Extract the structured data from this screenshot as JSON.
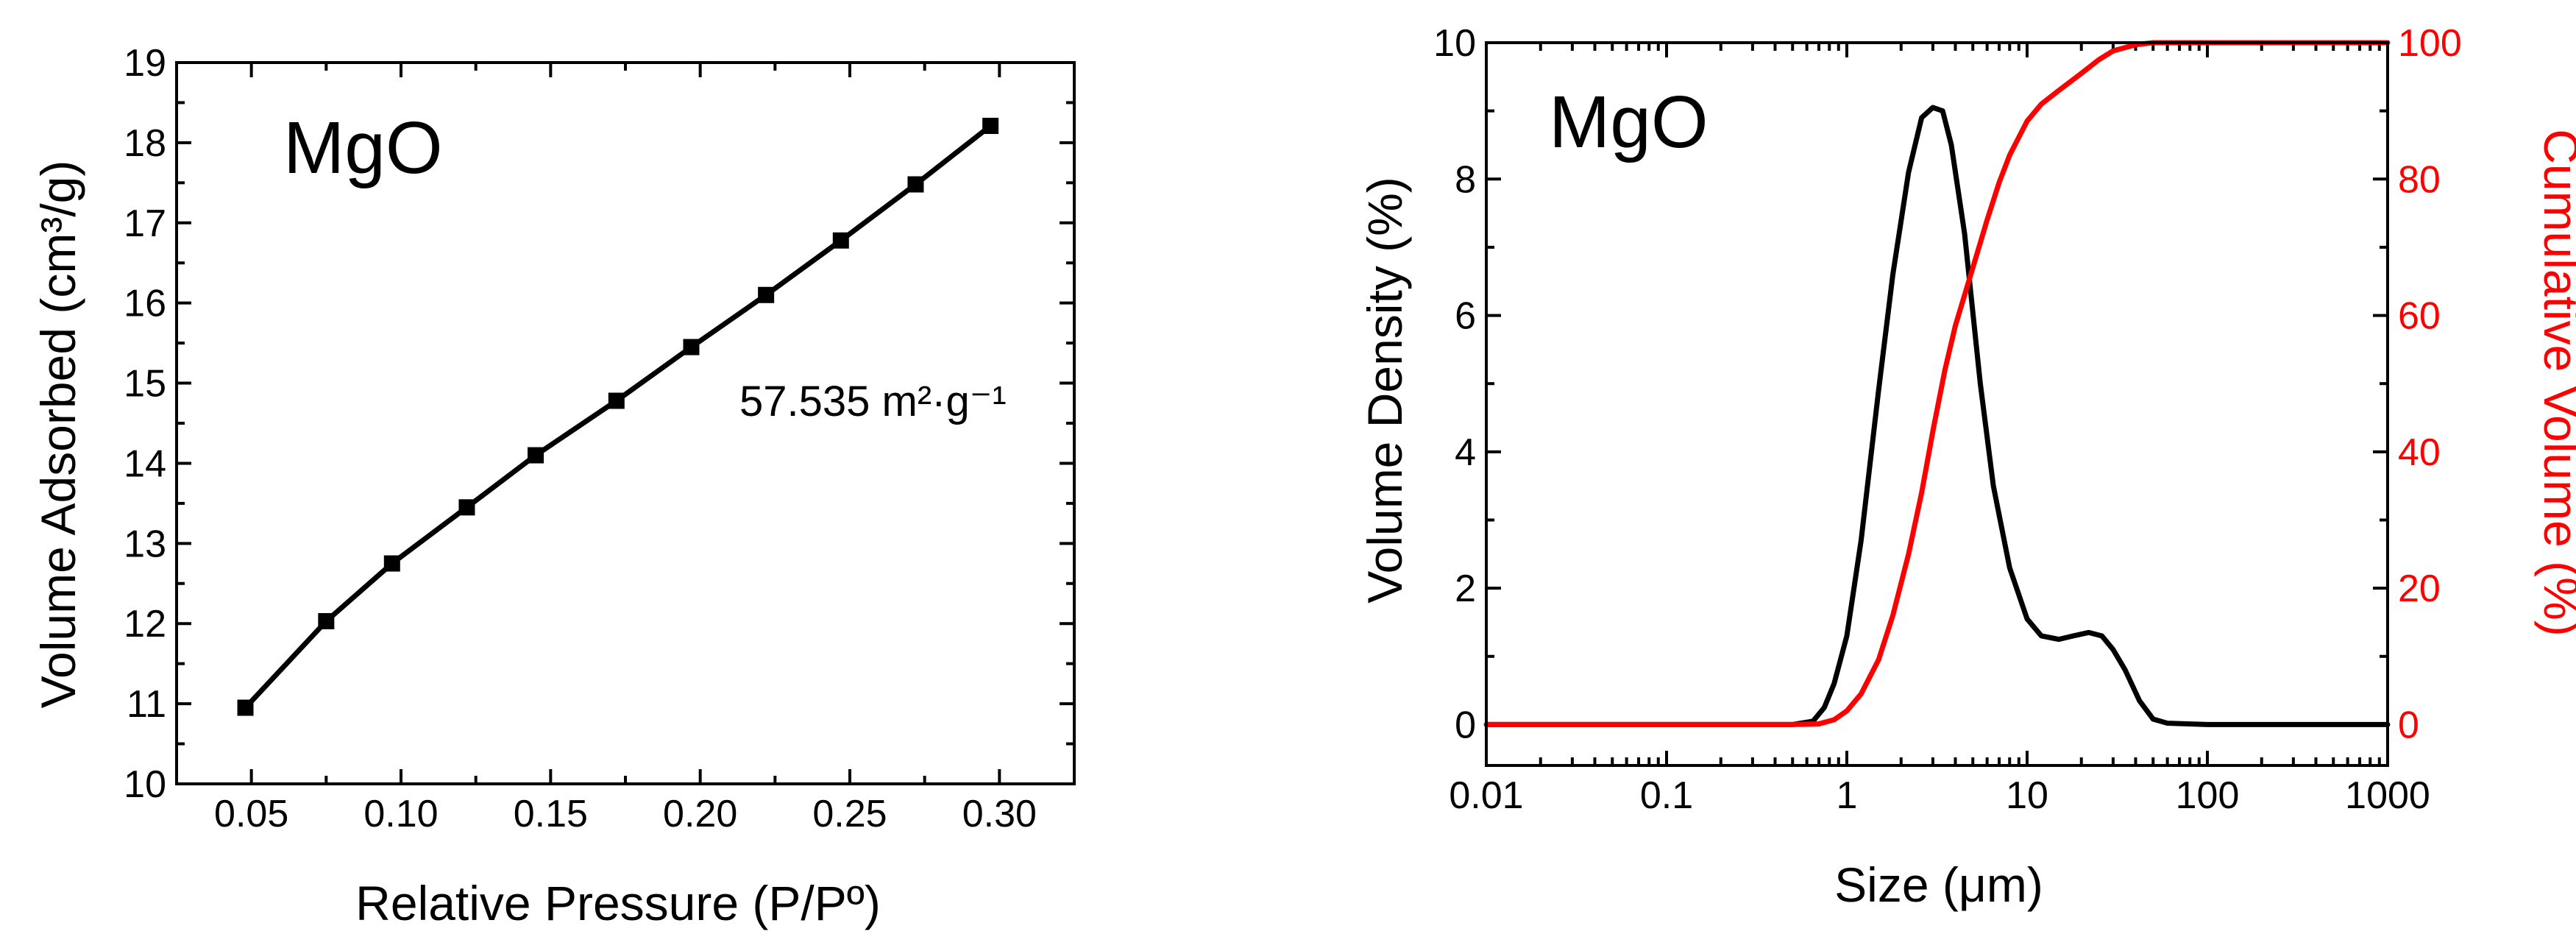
{
  "chart_data": [
    {
      "type": "line",
      "title": "",
      "panel_label": "MgO",
      "xlabel": "Relative Pressure (P/Pº)",
      "ylabel": "Volume Adsorbed (cm³/g)",
      "xlim": [
        0.025,
        0.325
      ],
      "ylim": [
        10,
        19
      ],
      "grid": false,
      "xticks": [
        0.05,
        0.1,
        0.15,
        0.2,
        0.25,
        0.3
      ],
      "xtick_labels": [
        "0.05",
        "0.10",
        "0.15",
        "0.20",
        "0.25",
        "0.30"
      ],
      "yticks": [
        10,
        11,
        12,
        13,
        14,
        15,
        16,
        17,
        18,
        19
      ],
      "ytick_labels": [
        "10",
        "11",
        "12",
        "13",
        "14",
        "15",
        "16",
        "17",
        "18",
        "19"
      ],
      "marker": "square",
      "annotation": "57.535 m²·g⁻¹",
      "series": [
        {
          "name": "MgO",
          "color": "#000000",
          "x": [
            0.048,
            0.075,
            0.097,
            0.122,
            0.145,
            0.172,
            0.197,
            0.222,
            0.247,
            0.272,
            0.297
          ],
          "y": [
            10.95,
            12.03,
            12.75,
            13.45,
            14.1,
            14.78,
            15.45,
            16.1,
            16.78,
            17.48,
            18.21
          ]
        }
      ]
    },
    {
      "type": "line",
      "title": "",
      "panel_label": "MgO",
      "xlabel": "Size (μm)",
      "ylabel": "Volume Density (%)",
      "y2label": "Cumulative Volume (%)",
      "xscale": "log",
      "xlim": [
        0.01,
        1000
      ],
      "ylim": [
        -0.6,
        10
      ],
      "y2lim": [
        -6,
        100
      ],
      "grid": false,
      "xticks": [
        0.01,
        0.1,
        1,
        10,
        100,
        1000
      ],
      "xtick_labels": [
        "0.01",
        "0.1",
        "1",
        "10",
        "100",
        "1000"
      ],
      "yticks": [
        0,
        2,
        4,
        6,
        8,
        10
      ],
      "ytick_labels": [
        "0",
        "2",
        "4",
        "6",
        "8",
        "10"
      ],
      "y2ticks": [
        0,
        20,
        40,
        60,
        80,
        100
      ],
      "y2tick_labels": [
        "0",
        "20",
        "40",
        "60",
        "80",
        "100"
      ],
      "series": [
        {
          "name": "Volume Density",
          "axis": "left",
          "color": "#000000",
          "x": [
            0.01,
            0.5,
            0.65,
            0.75,
            0.85,
            1.0,
            1.2,
            1.5,
            1.8,
            2.2,
            2.6,
            3.0,
            3.4,
            3.8,
            4.5,
            5.5,
            6.5,
            8.0,
            10.0,
            12.0,
            15.0,
            18.0,
            22.0,
            26.0,
            30.0,
            35.0,
            42.0,
            50.0,
            60.0,
            100.0,
            1000.0
          ],
          "y": [
            0.0,
            0.0,
            0.05,
            0.25,
            0.6,
            1.3,
            2.7,
            4.9,
            6.6,
            8.1,
            8.9,
            9.05,
            9.0,
            8.5,
            7.2,
            5.0,
            3.5,
            2.3,
            1.55,
            1.3,
            1.25,
            1.3,
            1.35,
            1.3,
            1.1,
            0.8,
            0.35,
            0.08,
            0.02,
            0.0,
            0.0
          ]
        },
        {
          "name": "Cumulative Volume",
          "axis": "right",
          "color": "#ff0000",
          "x": [
            0.01,
            0.5,
            0.7,
            0.85,
            1.0,
            1.2,
            1.5,
            1.8,
            2.2,
            2.6,
            3.0,
            3.5,
            4.0,
            5.0,
            6.0,
            7.0,
            8.0,
            10.0,
            12.0,
            15.0,
            20.0,
            25.0,
            30.0,
            40.0,
            50.0,
            100.0,
            1000.0
          ],
          "y": [
            0.0,
            0.0,
            0.1,
            0.7,
            2.0,
            4.5,
            9.5,
            16.0,
            25.0,
            34.0,
            43.0,
            52.0,
            58.5,
            67.0,
            74.0,
            79.5,
            83.5,
            88.5,
            91.0,
            93.0,
            95.5,
            97.5,
            98.8,
            99.7,
            100.0,
            100.0,
            100.0
          ]
        }
      ]
    }
  ]
}
